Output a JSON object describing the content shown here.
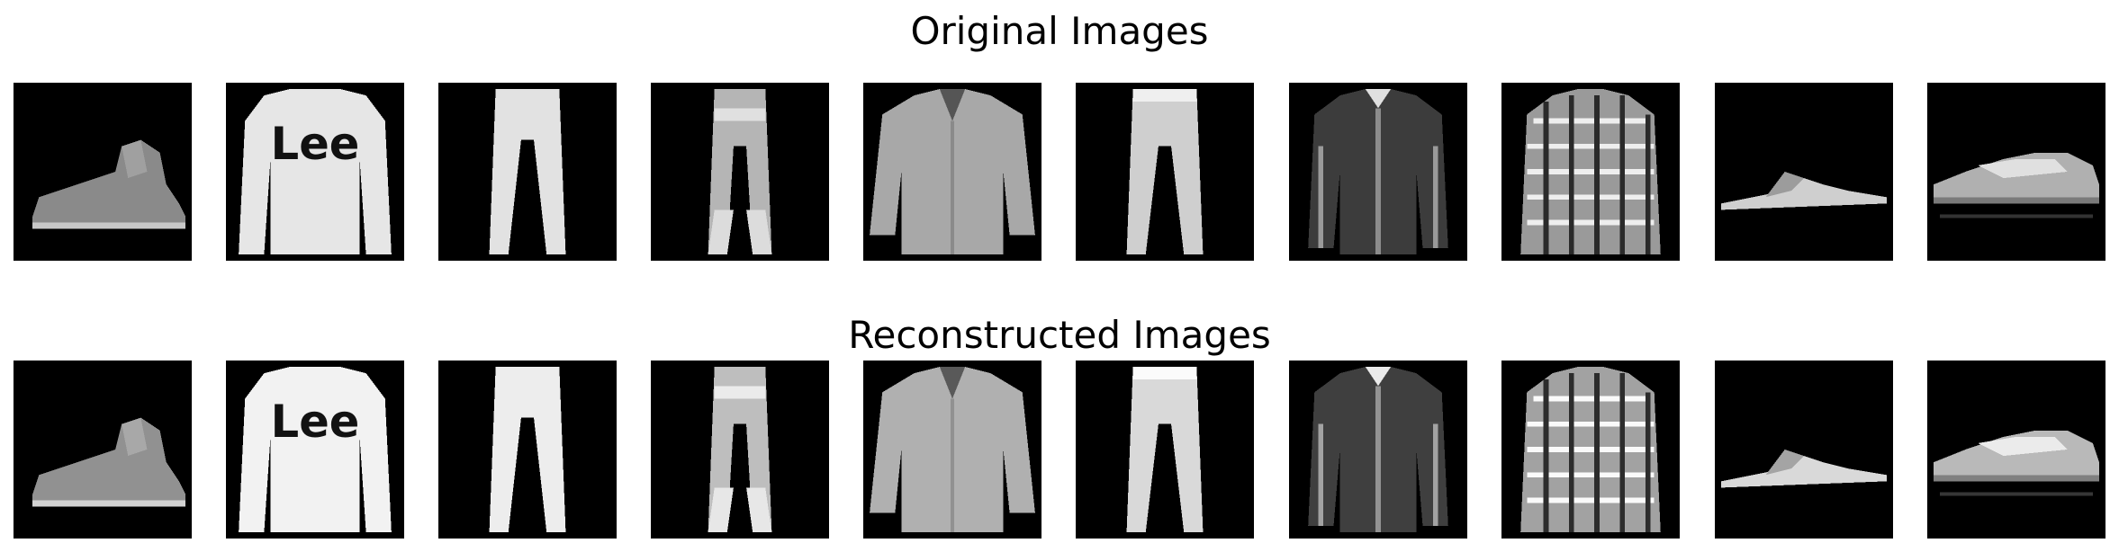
{
  "titles": {
    "original": "Original Images",
    "reconstructed": "Reconstructed Images"
  },
  "logo_text": "Lee",
  "items": [
    {
      "name": "ankle-boot-image",
      "kind": "boot"
    },
    {
      "name": "pullover-image",
      "kind": "lee"
    },
    {
      "name": "trouser-image",
      "kind": "trouser"
    },
    {
      "name": "trouser-image",
      "kind": "trouser2"
    },
    {
      "name": "shirt-image",
      "kind": "shirt"
    },
    {
      "name": "trouser-image",
      "kind": "trouser3"
    },
    {
      "name": "coat-image",
      "kind": "coat"
    },
    {
      "name": "plaid-shirt-image",
      "kind": "plaid"
    },
    {
      "name": "sandal-image",
      "kind": "sandal"
    },
    {
      "name": "sneaker-image",
      "kind": "sneaker"
    }
  ]
}
